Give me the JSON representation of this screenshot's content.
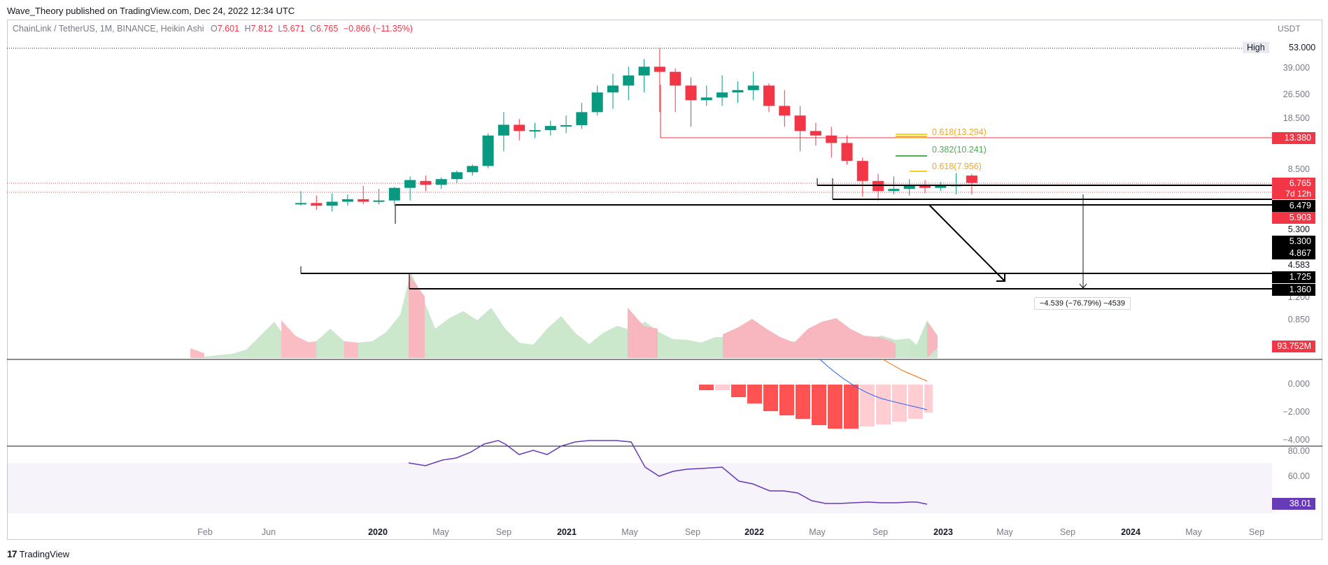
{
  "publisher_line": "Wave_Theory published on TradingView.com, Dec 24, 2022 12:34 UTC",
  "legend": {
    "symbol": "ChainLink / TetherUS, 1M, BINANCE, Heikin Ashi",
    "o_label": "O",
    "o_value": "7.601",
    "h_label": "H",
    "h_value": "7.812",
    "l_label": "L",
    "l_value": "5.671",
    "c_label": "C",
    "c_value": "6.765",
    "change": "−0.866 (−11.35%)"
  },
  "currency": "USDT",
  "high_label": "High",
  "high_value": "53.000",
  "price_axis": [
    "39.000",
    "26.500",
    "18.500",
    "8.500",
    "5.300",
    "4.583",
    "1.200",
    "0.850",
    "0.000",
    "−2.000",
    "−4.000",
    "80.00",
    "60.00"
  ],
  "tags": {
    "resistance": "13.380",
    "last_price": "6.765",
    "countdown": "7d 12h",
    "support1": "6.479",
    "support2": "5.903",
    "mid1": "5.300",
    "mid2": "4.867",
    "low1": "1.725",
    "low2": "1.360",
    "volume": "93.752M",
    "rsi": "38.01"
  },
  "fib_labels": {
    "f1": "0.618(13.294)",
    "f2": "0.382(10.241)",
    "f3": "0.618(7.956)"
  },
  "measure_label": "−4.539 (−76.79%) −4539",
  "time_axis": [
    {
      "label": "Feb",
      "bold": false
    },
    {
      "label": "Jun",
      "bold": false
    },
    {
      "label": "2020",
      "bold": true
    },
    {
      "label": "May",
      "bold": false
    },
    {
      "label": "Sep",
      "bold": false
    },
    {
      "label": "2021",
      "bold": true
    },
    {
      "label": "May",
      "bold": false
    },
    {
      "label": "Sep",
      "bold": false
    },
    {
      "label": "2022",
      "bold": true
    },
    {
      "label": "May",
      "bold": false
    },
    {
      "label": "Sep",
      "bold": false
    },
    {
      "label": "2023",
      "bold": true
    },
    {
      "label": "May",
      "bold": false
    },
    {
      "label": "Sep",
      "bold": false
    },
    {
      "label": "2024",
      "bold": true
    },
    {
      "label": "May",
      "bold": false
    },
    {
      "label": "Sep",
      "bold": false
    }
  ],
  "footer_brand": "TradingView",
  "colors": {
    "up": "#089981",
    "down": "#f23645",
    "rsi": "#673ab7",
    "fib_orange": "#f5a623",
    "fib_green": "#4caf50"
  },
  "chart_data": {
    "type": "candlestick",
    "interval": "1M",
    "candles": [
      {
        "o": 4.9,
        "h": 6.0,
        "l": 4.8,
        "c": 5.0
      },
      {
        "o": 5.0,
        "h": 5.6,
        "l": 4.5,
        "c": 4.8
      },
      {
        "o": 4.8,
        "h": 5.8,
        "l": 4.4,
        "c": 5.1
      },
      {
        "o": 5.1,
        "h": 5.7,
        "l": 4.8,
        "c": 5.3
      },
      {
        "o": 5.3,
        "h": 6.5,
        "l": 4.9,
        "c": 5.1
      },
      {
        "o": 5.1,
        "h": 6.2,
        "l": 4.9,
        "c": 5.2
      },
      {
        "o": 5.2,
        "h": 6.4,
        "l": 4.8,
        "c": 6.3
      },
      {
        "o": 6.3,
        "h": 7.5,
        "l": 5.2,
        "c": 7.1
      },
      {
        "o": 7.0,
        "h": 7.6,
        "l": 6.0,
        "c": 6.6
      },
      {
        "o": 6.6,
        "h": 7.4,
        "l": 6.2,
        "c": 7.2
      },
      {
        "o": 7.2,
        "h": 8.2,
        "l": 6.8,
        "c": 8.0
      },
      {
        "o": 8.0,
        "h": 9.0,
        "l": 7.6,
        "c": 8.8
      },
      {
        "o": 8.8,
        "h": 14.5,
        "l": 8.5,
        "c": 14.0
      },
      {
        "o": 14.0,
        "h": 20.0,
        "l": 11.0,
        "c": 16.5
      },
      {
        "o": 16.5,
        "h": 18.0,
        "l": 13.0,
        "c": 15.0
      },
      {
        "o": 15.0,
        "h": 17.0,
        "l": 13.5,
        "c": 15.2
      },
      {
        "o": 15.2,
        "h": 17.5,
        "l": 14.0,
        "c": 16.2
      },
      {
        "o": 16.2,
        "h": 19.0,
        "l": 14.5,
        "c": 16.4
      },
      {
        "o": 16.4,
        "h": 23.0,
        "l": 15.5,
        "c": 20.0
      },
      {
        "o": 20.0,
        "h": 30.0,
        "l": 19.0,
        "c": 27.0
      },
      {
        "o": 27.0,
        "h": 36.0,
        "l": 21.0,
        "c": 30.0
      },
      {
        "o": 30.0,
        "h": 40.0,
        "l": 24.0,
        "c": 35.0
      },
      {
        "o": 35.0,
        "h": 45.0,
        "l": 27.0,
        "c": 40.0
      },
      {
        "o": 40.0,
        "h": 53.0,
        "l": 20.0,
        "c": 37.0
      },
      {
        "o": 37.0,
        "h": 39.0,
        "l": 20.0,
        "c": 30.0
      },
      {
        "o": 30.0,
        "h": 34.0,
        "l": 16.0,
        "c": 24.0
      },
      {
        "o": 24.0,
        "h": 30.0,
        "l": 22.0,
        "c": 25.0
      },
      {
        "o": 25.0,
        "h": 35.0,
        "l": 22.0,
        "c": 27.0
      },
      {
        "o": 27.0,
        "h": 32.0,
        "l": 23.0,
        "c": 28.0
      },
      {
        "o": 28.0,
        "h": 37.0,
        "l": 24.0,
        "c": 30.0
      },
      {
        "o": 30.0,
        "h": 31.0,
        "l": 20.0,
        "c": 22.0
      },
      {
        "o": 22.0,
        "h": 28.0,
        "l": 16.0,
        "c": 19.0
      },
      {
        "o": 19.0,
        "h": 22.0,
        "l": 11.0,
        "c": 15.0
      },
      {
        "o": 15.0,
        "h": 17.0,
        "l": 12.0,
        "c": 14.0
      },
      {
        "o": 14.0,
        "h": 16.0,
        "l": 10.0,
        "c": 12.5
      },
      {
        "o": 12.5,
        "h": 14.0,
        "l": 9.0,
        "c": 9.5
      },
      {
        "o": 9.5,
        "h": 10.0,
        "l": 5.5,
        "c": 7.0
      },
      {
        "o": 7.0,
        "h": 7.8,
        "l": 5.2,
        "c": 6.0
      },
      {
        "o": 6.0,
        "h": 7.5,
        "l": 5.7,
        "c": 6.2
      },
      {
        "o": 6.2,
        "h": 7.2,
        "l": 5.6,
        "c": 6.5
      },
      {
        "o": 6.5,
        "h": 7.1,
        "l": 5.8,
        "c": 6.3
      },
      {
        "o": 6.3,
        "h": 6.9,
        "l": 6.0,
        "c": 6.5
      },
      {
        "o": 6.5,
        "h": 7.9,
        "l": 5.7,
        "c": 6.6
      },
      {
        "o": 7.6,
        "h": 7.8,
        "l": 5.7,
        "c": 6.8
      }
    ]
  }
}
